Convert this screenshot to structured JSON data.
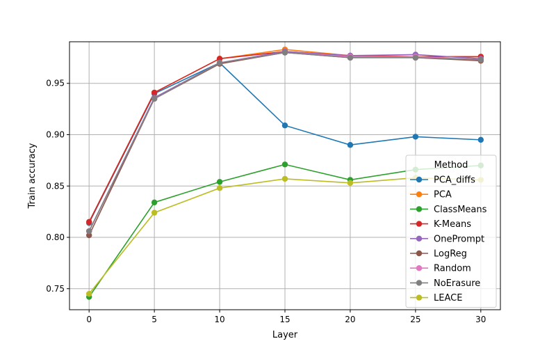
{
  "chart_data": {
    "type": "line",
    "xlabel": "Layer",
    "ylabel": "Train accuracy",
    "x": [
      0,
      5,
      10,
      15,
      20,
      25,
      30
    ],
    "xticks": [
      0,
      5,
      10,
      15,
      20,
      25,
      30
    ],
    "yticks": [
      0.75,
      0.8,
      0.85,
      0.9,
      0.95
    ],
    "xlim": [
      -1.5,
      31.5
    ],
    "ylim": [
      0.7295,
      0.9905
    ],
    "grid": true,
    "legend": {
      "title": "Method",
      "placement": "lower-right"
    },
    "series": [
      {
        "name": "PCA_diffs",
        "color": "#1f77b4",
        "values": [
          0.814,
          0.94,
          0.97,
          0.909,
          0.89,
          0.898,
          0.895
        ]
      },
      {
        "name": "PCA",
        "color": "#ff7f0e",
        "values": [
          0.815,
          0.941,
          0.974,
          0.983,
          0.977,
          0.976,
          0.976
        ]
      },
      {
        "name": "ClassMeans",
        "color": "#2ca02c",
        "values": [
          0.742,
          0.834,
          0.854,
          0.871,
          0.856,
          0.866,
          0.87
        ]
      },
      {
        "name": "K-Means",
        "color": "#d62728",
        "values": [
          0.815,
          0.941,
          0.974,
          0.981,
          0.977,
          0.976,
          0.976
        ]
      },
      {
        "name": "OnePrompt",
        "color": "#9467bd",
        "values": [
          0.806,
          0.936,
          0.97,
          0.981,
          0.977,
          0.978,
          0.974
        ]
      },
      {
        "name": "LogReg",
        "color": "#8c564b",
        "values": [
          0.802,
          0.935,
          0.969,
          0.98,
          0.975,
          0.975,
          0.972
        ]
      },
      {
        "name": "Random",
        "color": "#e377c2",
        "values": [
          0.806,
          0.935,
          0.97,
          0.98,
          0.976,
          0.976,
          0.973
        ]
      },
      {
        "name": "NoErasure",
        "color": "#7f7f7f",
        "values": [
          0.806,
          0.935,
          0.97,
          0.98,
          0.975,
          0.975,
          0.973
        ]
      },
      {
        "name": "LEACE",
        "color": "#bcbd22",
        "values": [
          0.745,
          0.824,
          0.848,
          0.857,
          0.853,
          0.858,
          0.856
        ]
      }
    ]
  }
}
